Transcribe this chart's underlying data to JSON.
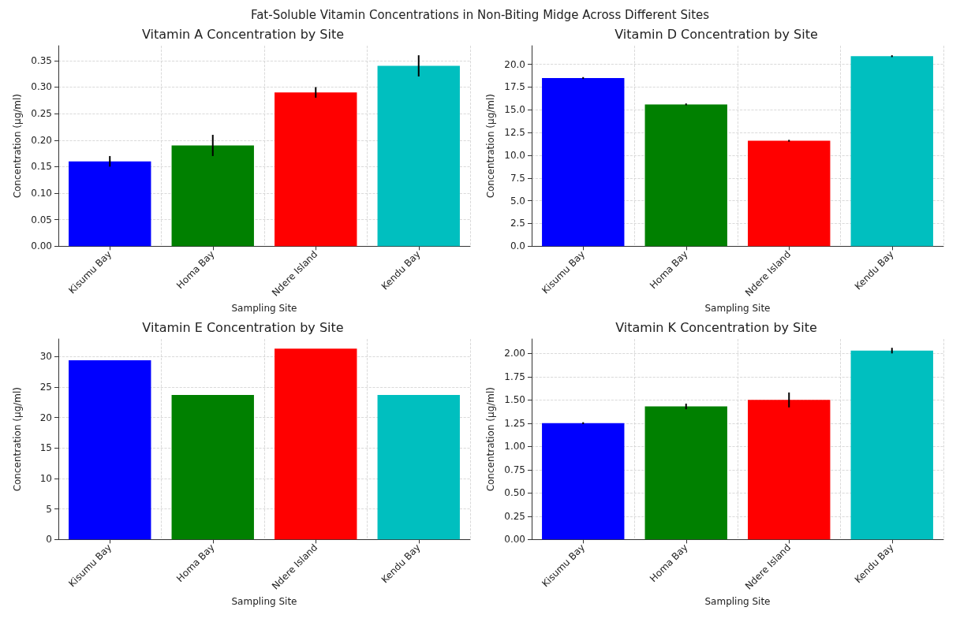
{
  "chart_data": [
    {
      "type": "bar",
      "title": "Vitamin A Concentration by Site",
      "annotations": [
        "Fat-Soluble Vitamin Concentrations in Non-Biting Midge Across Different Sites"
      ],
      "xlabel": "Sampling Site",
      "ylabel": "Concentration (µg/ml)",
      "categories": [
        "Kisumu Bay",
        "Homa Bay",
        "Ndere Island",
        "Kendu Bay"
      ],
      "values": [
        0.16,
        0.19,
        0.29,
        0.34
      ],
      "errors": [
        0.01,
        0.02,
        0.01,
        0.02
      ],
      "colors": [
        "#0000ff",
        "#008000",
        "#ff0000",
        "#00bfbf"
      ],
      "ylim": [
        0,
        0.378
      ],
      "yticks": [
        {
          "value": 0,
          "label": "0.00"
        },
        {
          "value": 0.05,
          "label": "0.05"
        },
        {
          "value": 0.1,
          "label": "0.10"
        },
        {
          "value": 0.15,
          "label": "0.15"
        },
        {
          "value": 0.2,
          "label": "0.20"
        },
        {
          "value": 0.25,
          "label": "0.25"
        },
        {
          "value": 0.3,
          "label": "0.30"
        },
        {
          "value": 0.35,
          "label": "0.35"
        }
      ],
      "grid": true
    },
    {
      "type": "bar",
      "title": "Vitamin D Concentration by Site",
      "xlabel": "Sampling Site",
      "ylabel": "Concentration (µg/ml)",
      "categories": [
        "Kisumu Bay",
        "Homa Bay",
        "Ndere Island",
        "Kendu Bay"
      ],
      "values": [
        18.5,
        15.6,
        11.6,
        20.9
      ],
      "errors": [
        0.1,
        0.1,
        0.1,
        0.1
      ],
      "colors": [
        "#0000ff",
        "#008000",
        "#ff0000",
        "#00bfbf"
      ],
      "ylim": [
        0,
        22.05
      ],
      "yticks": [
        {
          "value": 0,
          "label": "0.0"
        },
        {
          "value": 2.5,
          "label": "2.5"
        },
        {
          "value": 5,
          "label": "5.0"
        },
        {
          "value": 7.5,
          "label": "7.5"
        },
        {
          "value": 10,
          "label": "10.0"
        },
        12.5,
        {
          "value": 15,
          "label": "15.0"
        },
        17.5,
        {
          "value": 20,
          "label": "20.0"
        }
      ],
      "grid": true
    },
    {
      "type": "bar",
      "title": "Vitamin E Concentration by Site",
      "xlabel": "Sampling Site",
      "ylabel": "Concentration (µg/ml)",
      "categories": [
        "Kisumu Bay",
        "Homa Bay",
        "Ndere Island",
        "Kendu Bay"
      ],
      "values": [
        29.4,
        23.7,
        31.3,
        23.7
      ],
      "colors": [
        "#0000ff",
        "#008000",
        "#ff0000",
        "#00bfbf"
      ],
      "ylim": [
        0,
        32.9
      ],
      "yticks": [
        0,
        5,
        10,
        15,
        20,
        25,
        30
      ],
      "grid": true
    },
    {
      "type": "bar",
      "title": "Vitamin K Concentration by Site",
      "xlabel": "Sampling Site",
      "ylabel": "Concentration (µg/ml)",
      "categories": [
        "Kisumu Bay",
        "Homa Bay",
        "Ndere Island",
        "Kendu Bay"
      ],
      "values": [
        1.25,
        1.43,
        1.5,
        2.03
      ],
      "errors": [
        0.01,
        0.03,
        0.08,
        0.03
      ],
      "colors": [
        "#0000ff",
        "#008000",
        "#ff0000",
        "#00bfbf"
      ],
      "ylim": [
        0,
        2.155
      ],
      "yticks": [
        {
          "value": 0,
          "label": "0.00"
        },
        {
          "value": 0.25,
          "label": "0.25"
        },
        {
          "value": 0.5,
          "label": "0.50"
        },
        {
          "value": 0.75,
          "label": "0.75"
        },
        {
          "value": 1,
          "label": "1.00"
        },
        {
          "value": 1.25,
          "label": "1.25"
        },
        {
          "value": 1.5,
          "label": "1.50"
        },
        {
          "value": 1.75,
          "label": "1.75"
        },
        {
          "value": 2,
          "label": "2.00"
        }
      ],
      "grid": true
    }
  ]
}
